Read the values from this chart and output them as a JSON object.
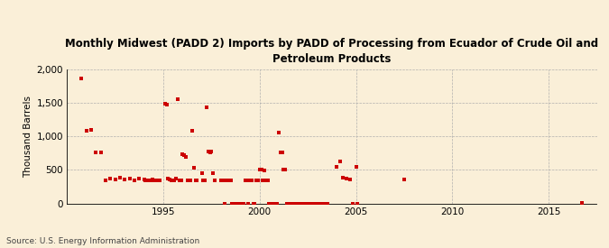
{
  "title": "Monthly Midwest (PADD 2) Imports by PADD of Processing from Ecuador of Crude Oil and\nPetroleum Products",
  "ylabel": "Thousand Barrels",
  "source": "Source: U.S. Energy Information Administration",
  "background_color": "#faefd8",
  "plot_background_color": "#faefd8",
  "marker_color": "#cc0000",
  "marker": "s",
  "marker_size": 3,
  "xlim": [
    1990.0,
    2017.5
  ],
  "ylim": [
    0,
    2000
  ],
  "yticks": [
    0,
    500,
    1000,
    1500,
    2000
  ],
  "xticks": [
    1995,
    2000,
    2005,
    2010,
    2015
  ],
  "scatter_x": [
    1990.75,
    1991.0,
    1991.25,
    1991.5,
    1991.75,
    1992.0,
    1992.25,
    1992.5,
    1992.75,
    1993.0,
    1993.25,
    1993.5,
    1993.75,
    1994.0,
    1994.08,
    1994.17,
    1994.25,
    1994.33,
    1994.42,
    1994.5,
    1994.58,
    1994.67,
    1994.75,
    1994.83,
    1995.08,
    1995.17,
    1995.25,
    1995.33,
    1995.42,
    1995.5,
    1995.58,
    1995.67,
    1995.75,
    1995.83,
    1995.92,
    1996.0,
    1996.08,
    1996.17,
    1996.25,
    1996.33,
    1996.42,
    1996.5,
    1996.58,
    1996.67,
    1996.75,
    1997.0,
    1997.08,
    1997.17,
    1997.25,
    1997.33,
    1997.42,
    1997.5,
    1997.58,
    1997.67,
    1998.0,
    1998.08,
    1998.17,
    1998.25,
    1998.33,
    1998.42,
    1998.5,
    1998.58,
    1998.67,
    1998.75,
    1998.83,
    1998.92,
    1999.0,
    1999.08,
    1999.17,
    1999.25,
    1999.33,
    1999.42,
    1999.5,
    1999.58,
    1999.67,
    1999.75,
    1999.83,
    1999.92,
    2000.0,
    2000.08,
    2000.17,
    2000.25,
    2000.33,
    2000.42,
    2000.5,
    2000.58,
    2000.67,
    2000.75,
    2000.83,
    2000.92,
    2001.0,
    2001.08,
    2001.17,
    2001.25,
    2001.33,
    2001.42,
    2001.5,
    2001.58,
    2001.67,
    2001.75,
    2001.83,
    2001.92,
    2002.0,
    2002.08,
    2002.17,
    2002.25,
    2002.33,
    2002.42,
    2002.5,
    2002.58,
    2002.67,
    2002.75,
    2002.83,
    2002.92,
    2003.0,
    2003.08,
    2003.17,
    2003.25,
    2003.33,
    2003.42,
    2003.5,
    2004.0,
    2004.17,
    2004.33,
    2004.5,
    2004.67,
    2004.83,
    2005.0,
    2005.08,
    2007.5,
    2016.75
  ],
  "scatter_y": [
    1860,
    1080,
    1100,
    760,
    760,
    350,
    370,
    360,
    380,
    360,
    370,
    350,
    370,
    360,
    350,
    350,
    350,
    350,
    360,
    350,
    350,
    350,
    350,
    350,
    1490,
    1470,
    370,
    360,
    350,
    350,
    350,
    370,
    1560,
    350,
    350,
    730,
    720,
    690,
    350,
    350,
    350,
    1090,
    530,
    350,
    350,
    450,
    350,
    350,
    1430,
    780,
    760,
    770,
    450,
    350,
    350,
    350,
    0,
    350,
    350,
    350,
    350,
    0,
    0,
    0,
    0,
    0,
    0,
    0,
    0,
    350,
    350,
    0,
    350,
    350,
    0,
    0,
    350,
    350,
    500,
    500,
    350,
    490,
    350,
    350,
    0,
    0,
    0,
    0,
    0,
    0,
    1060,
    760,
    760,
    500,
    500,
    0,
    0,
    0,
    0,
    0,
    0,
    0,
    0,
    0,
    0,
    0,
    0,
    0,
    0,
    0,
    0,
    0,
    0,
    0,
    0,
    0,
    0,
    0,
    0,
    0,
    0,
    540,
    620,
    380,
    370,
    360,
    0,
    540,
    0,
    360,
    10
  ]
}
